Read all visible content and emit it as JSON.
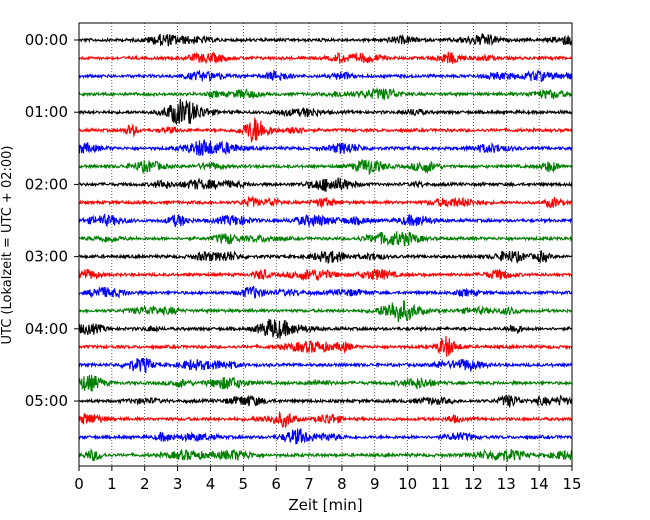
{
  "chart_data": {
    "type": "line",
    "title": "",
    "xlabel": "Zeit  [min]",
    "ylabel": "UTC (Lokalzeit = UTC + 02:00)",
    "xlim": [
      0,
      15
    ],
    "x_ticks": [
      "0",
      "1",
      "2",
      "3",
      "4",
      "5",
      "6",
      "7",
      "8",
      "9",
      "10",
      "11",
      "12",
      "13",
      "14",
      "15"
    ],
    "y_tick_labels": [
      "00:00",
      "01:00",
      "02:00",
      "03:00",
      "04:00",
      "05:00"
    ],
    "traces_per_hour": 4,
    "trace_minutes": 15,
    "grid": "vertical dotted lines at each minute",
    "trace_colors": [
      "#000000",
      "#ff0000",
      "#0000ff",
      "#008000"
    ],
    "traces": [
      {
        "start": "00:00",
        "color": "#000000"
      },
      {
        "start": "00:15",
        "color": "#ff0000"
      },
      {
        "start": "00:30",
        "color": "#0000ff"
      },
      {
        "start": "00:45",
        "color": "#008000"
      },
      {
        "start": "01:00",
        "color": "#000000"
      },
      {
        "start": "01:15",
        "color": "#ff0000"
      },
      {
        "start": "01:30",
        "color": "#0000ff"
      },
      {
        "start": "01:45",
        "color": "#008000"
      },
      {
        "start": "02:00",
        "color": "#000000"
      },
      {
        "start": "02:15",
        "color": "#ff0000"
      },
      {
        "start": "02:30",
        "color": "#0000ff"
      },
      {
        "start": "02:45",
        "color": "#008000"
      },
      {
        "start": "03:00",
        "color": "#000000"
      },
      {
        "start": "03:15",
        "color": "#ff0000"
      },
      {
        "start": "03:30",
        "color": "#0000ff"
      },
      {
        "start": "03:45",
        "color": "#008000"
      },
      {
        "start": "04:00",
        "color": "#000000"
      },
      {
        "start": "04:15",
        "color": "#ff0000"
      },
      {
        "start": "04:30",
        "color": "#0000ff"
      },
      {
        "start": "04:45",
        "color": "#008000"
      },
      {
        "start": "05:00",
        "color": "#000000"
      },
      {
        "start": "05:15",
        "color": "#ff0000"
      },
      {
        "start": "05:30",
        "color": "#0000ff"
      },
      {
        "start": "05:45",
        "color": "#008000"
      }
    ]
  }
}
